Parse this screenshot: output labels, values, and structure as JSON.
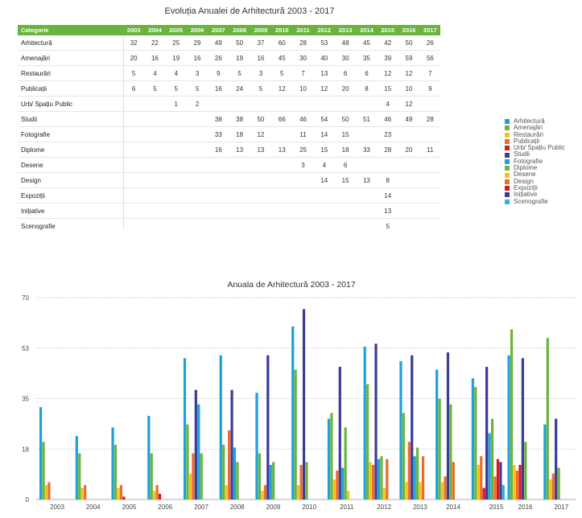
{
  "table": {
    "title": "Evoluția Anualei de Arhitectură 2003 - 2017",
    "category_header": "Categorie",
    "header_color": "#6ab43e",
    "years": [
      "2003",
      "2004",
      "2005",
      "2006",
      "2007",
      "2008",
      "2009",
      "2010",
      "2011",
      "2012",
      "2013",
      "2014",
      "2015",
      "2016",
      "2017"
    ],
    "rows": [
      {
        "label": "Arhitectură",
        "values": [
          "32",
          "22",
          "25",
          "29",
          "49",
          "50",
          "37",
          "60",
          "28",
          "53",
          "48",
          "45",
          "42",
          "50",
          "26"
        ]
      },
      {
        "label": "Amenajări",
        "values": [
          "20",
          "16",
          "19",
          "16",
          "26",
          "19",
          "16",
          "45",
          "30",
          "40",
          "30",
          "35",
          "39",
          "59",
          "56"
        ]
      },
      {
        "label": "Restaurări",
        "values": [
          "5",
          "4",
          "4",
          "3",
          "9",
          "5",
          "3",
          "5",
          "7",
          "13",
          "6",
          "6",
          "12",
          "12",
          "7"
        ]
      },
      {
        "label": "Publicații",
        "values": [
          "6",
          "5",
          "5",
          "5",
          "16",
          "24",
          "5",
          "12",
          "10",
          "12",
          "20",
          "8",
          "15",
          "10",
          "9"
        ]
      },
      {
        "label": "Urb/ Spațiu Public",
        "values": [
          "",
          "",
          "1",
          "2",
          "",
          "",
          "",
          "",
          "",
          "",
          "",
          "",
          "4",
          "12",
          ""
        ]
      },
      {
        "label": "Studii",
        "values": [
          "",
          "",
          "",
          "",
          "38",
          "38",
          "50",
          "66",
          "46",
          "54",
          "50",
          "51",
          "46",
          "49",
          "28"
        ]
      },
      {
        "label": "Fotografie",
        "values": [
          "",
          "",
          "",
          "",
          "33",
          "18",
          "12",
          "",
          "11",
          "14",
          "15",
          "",
          "23",
          "",
          ""
        ]
      },
      {
        "label": "Diplome",
        "values": [
          "",
          "",
          "",
          "",
          "16",
          "13",
          "13",
          "13",
          "25",
          "15",
          "18",
          "33",
          "28",
          "20",
          "11"
        ]
      },
      {
        "label": "Desene",
        "values": [
          "",
          "",
          "",
          "",
          "",
          "",
          "",
          "",
          "3",
          "4",
          "6",
          "",
          "",
          "",
          ""
        ]
      },
      {
        "label": "Design",
        "values": [
          "",
          "",
          "",
          "",
          "",
          "",
          "",
          "",
          "",
          "14",
          "15",
          "13",
          "8",
          "",
          ""
        ]
      },
      {
        "label": "Expoziții",
        "values": [
          "",
          "",
          "",
          "",
          "",
          "",
          "",
          "",
          "",
          "",
          "",
          "",
          "14",
          "",
          ""
        ]
      },
      {
        "label": "Inițiative",
        "values": [
          "",
          "",
          "",
          "",
          "",
          "",
          "",
          "",
          "",
          "",
          "",
          "",
          "13",
          "",
          ""
        ]
      },
      {
        "label": "Scenografie",
        "values": [
          "",
          "",
          "",
          "",
          "",
          "",
          "",
          "",
          "",
          "",
          "",
          "",
          "5",
          "",
          ""
        ]
      }
    ]
  },
  "legend": [
    {
      "label": "Arhitectură",
      "color": "#1ea0d8"
    },
    {
      "label": "Amenajări",
      "color": "#6ab43e"
    },
    {
      "label": "Restaurări",
      "color": "#f5c518"
    },
    {
      "label": "Publicații",
      "color": "#ef6b2a"
    },
    {
      "label": "Urb/ Spațiu Public",
      "color": "#d7191c"
    },
    {
      "label": "Studii",
      "color": "#3b3b98"
    },
    {
      "label": "Fotografie",
      "color": "#1ea0d8"
    },
    {
      "label": "Diplome",
      "color": "#6ab43e"
    },
    {
      "label": "Desene",
      "color": "#f5c518"
    },
    {
      "label": "Design",
      "color": "#ef6b2a"
    },
    {
      "label": "Expoziții",
      "color": "#d7191c"
    },
    {
      "label": "Inițiative",
      "color": "#3b3b98"
    },
    {
      "label": "Scenografie",
      "color": "#29b6d8"
    }
  ],
  "chart_data": {
    "type": "bar",
    "title": "Anuala de Arhitectură 2003 - 2017",
    "xlabel": "",
    "ylabel": "",
    "ylim": [
      0,
      70
    ],
    "yticks": [
      "0",
      "18",
      "35",
      "53",
      "70"
    ],
    "ytick_values": [
      0,
      17.5,
      35,
      52.5,
      70
    ],
    "grid": true,
    "legend_position": "right",
    "categories": [
      "2003",
      "2004",
      "2005",
      "2006",
      "2007",
      "2008",
      "2009",
      "2010",
      "2011",
      "2012",
      "2013",
      "2014",
      "2015",
      "2016",
      "2017"
    ],
    "series": [
      {
        "name": "Arhitectură",
        "color": "#1ea0d8",
        "values": [
          32,
          22,
          25,
          29,
          49,
          50,
          37,
          60,
          28,
          53,
          48,
          45,
          42,
          50,
          26
        ]
      },
      {
        "name": "Amenajări",
        "color": "#6ab43e",
        "values": [
          20,
          16,
          19,
          16,
          26,
          19,
          16,
          45,
          30,
          40,
          30,
          35,
          39,
          59,
          56
        ]
      },
      {
        "name": "Restaurări",
        "color": "#f5c518",
        "values": [
          5,
          4,
          4,
          3,
          9,
          5,
          3,
          5,
          7,
          13,
          6,
          6,
          12,
          12,
          7
        ]
      },
      {
        "name": "Publicații",
        "color": "#ef6b2a",
        "values": [
          6,
          5,
          5,
          5,
          16,
          24,
          5,
          12,
          10,
          12,
          20,
          8,
          15,
          10,
          9
        ]
      },
      {
        "name": "Urb/ Spațiu Public",
        "color": "#d7191c",
        "values": [
          null,
          null,
          1,
          2,
          null,
          null,
          null,
          null,
          null,
          null,
          null,
          null,
          4,
          12,
          null
        ]
      },
      {
        "name": "Studii",
        "color": "#3b3b98",
        "values": [
          null,
          null,
          null,
          null,
          38,
          38,
          50,
          66,
          46,
          54,
          50,
          51,
          46,
          49,
          28
        ]
      },
      {
        "name": "Fotografie",
        "color": "#1ea0d8",
        "values": [
          null,
          null,
          null,
          null,
          33,
          18,
          12,
          null,
          11,
          14,
          15,
          null,
          23,
          null,
          null
        ]
      },
      {
        "name": "Diplome",
        "color": "#6ab43e",
        "values": [
          null,
          null,
          null,
          null,
          16,
          13,
          13,
          13,
          25,
          15,
          18,
          33,
          28,
          20,
          11
        ]
      },
      {
        "name": "Desene",
        "color": "#f5c518",
        "values": [
          null,
          null,
          null,
          null,
          null,
          null,
          null,
          null,
          3,
          4,
          6,
          null,
          null,
          null,
          null
        ]
      },
      {
        "name": "Design",
        "color": "#ef6b2a",
        "values": [
          null,
          null,
          null,
          null,
          null,
          null,
          null,
          null,
          null,
          14,
          15,
          13,
          8,
          null,
          null
        ]
      },
      {
        "name": "Expoziții",
        "color": "#d7191c",
        "values": [
          null,
          null,
          null,
          null,
          null,
          null,
          null,
          null,
          null,
          null,
          null,
          null,
          14,
          null,
          null
        ]
      },
      {
        "name": "Inițiative",
        "color": "#3b3b98",
        "values": [
          null,
          null,
          null,
          null,
          null,
          null,
          null,
          null,
          null,
          null,
          null,
          null,
          13,
          null,
          null
        ]
      },
      {
        "name": "Scenografie",
        "color": "#29b6d8",
        "values": [
          null,
          null,
          null,
          null,
          null,
          null,
          null,
          null,
          null,
          null,
          null,
          null,
          5,
          null,
          null
        ]
      }
    ]
  }
}
